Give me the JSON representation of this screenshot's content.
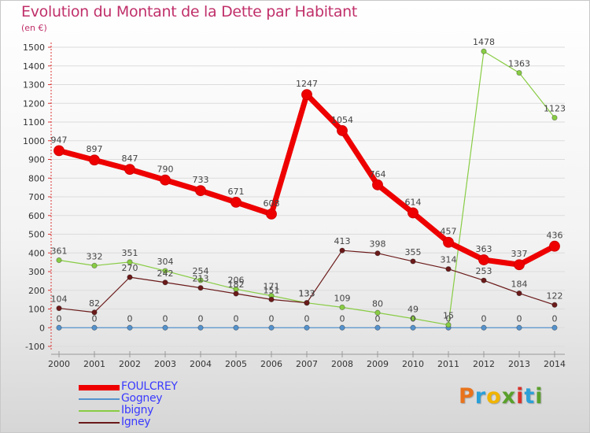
{
  "header": {
    "title": "Evolution du Montant de la Dette par Habitant",
    "unit": "(en €)"
  },
  "logo": {
    "text": "Proxiti",
    "colors": [
      "#e8731c",
      "#2ba0d8",
      "#f0b400",
      "#5aa02c",
      "#d8322b",
      "#2ba0d8",
      "#5aa02c"
    ]
  },
  "chart_data": {
    "type": "line",
    "title": "Evolution du Montant de la Dette par Habitant",
    "ylabel": "(en €)",
    "xlabel": "",
    "x": [
      "2000",
      "2001",
      "2002",
      "2003",
      "2004",
      "2005",
      "2006",
      "2007",
      "2008",
      "2009",
      "2010",
      "2011",
      "2012",
      "2013",
      "2014"
    ],
    "ylim": [
      -100,
      1500
    ],
    "yticks": [
      -100,
      0,
      100,
      200,
      300,
      400,
      500,
      600,
      700,
      800,
      900,
      1000,
      1100,
      1200,
      1300,
      1400,
      1500
    ],
    "grid": "horizontal",
    "legend_position": "bottom-left",
    "series": [
      {
        "name": "FOULCREY",
        "color": "#ee0000",
        "values": [
          947,
          897,
          847,
          790,
          733,
          671,
          608,
          1247,
          1054,
          764,
          614,
          457,
          363,
          337,
          436
        ]
      },
      {
        "name": "Gogney",
        "color": "#5592cc",
        "values": [
          0,
          0,
          0,
          0,
          0,
          0,
          0,
          0,
          0,
          0,
          0,
          0,
          0,
          0,
          0
        ]
      },
      {
        "name": "Ibigny",
        "color": "#88cc44",
        "values": [
          361,
          332,
          351,
          304,
          254,
          206,
          171,
          133,
          109,
          80,
          49,
          15,
          1478,
          1363,
          1123
        ]
      },
      {
        "name": "Igney",
        "color": "#6b1a1a",
        "values": [
          104,
          82,
          270,
          242,
          213,
          182,
          151,
          133,
          413,
          398,
          355,
          314,
          253,
          184,
          122
        ]
      }
    ],
    "point_labels": {
      "FOULCREY": [
        "947",
        "897",
        "847",
        "790",
        "733",
        "671",
        "608",
        "1247",
        "1054",
        "764",
        "614",
        "457",
        "363",
        "337",
        "436"
      ],
      "Gogney": [
        "0",
        "0",
        "0",
        "0",
        "0",
        "0",
        "0",
        "0",
        "0",
        "0",
        "0",
        "0",
        "0",
        "0",
        "0"
      ],
      "Ibigny": [
        "361",
        "332",
        "351",
        "304",
        "254",
        "206",
        "171",
        "133",
        "109",
        "80",
        "49",
        "15",
        "1478",
        "1363",
        "1123"
      ],
      "Igney": [
        "104",
        "82",
        "270",
        "242",
        "213",
        "182",
        "151",
        "133",
        "413",
        "398",
        "355",
        "314",
        "253",
        "184",
        "122"
      ]
    }
  }
}
